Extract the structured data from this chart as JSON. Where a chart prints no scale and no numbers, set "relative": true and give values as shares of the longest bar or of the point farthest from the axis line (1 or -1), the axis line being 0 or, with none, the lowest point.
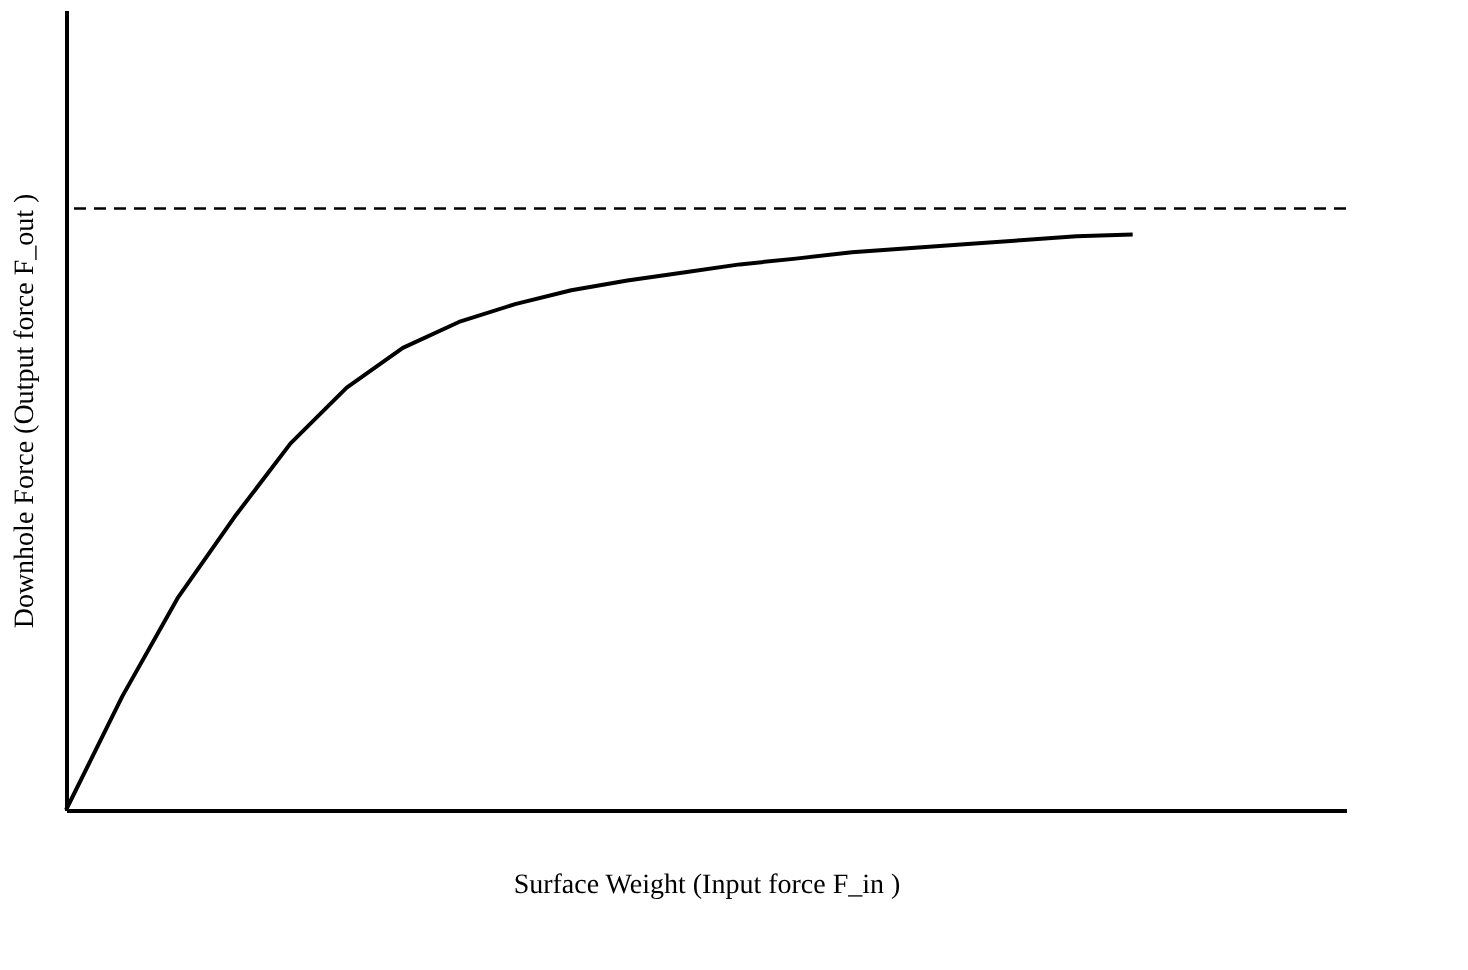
{
  "chart_data": {
    "type": "line",
    "relative": true,
    "xlabel": "Surface Weight  (Input force F_in )",
    "ylabel": "Downhole Force (Output force F_out )",
    "categories": [
      null,
      null,
      null,
      null,
      null,
      null,
      null,
      null,
      null,
      null,
      null,
      null,
      null,
      null,
      null,
      null,
      null,
      null,
      null,
      null
    ],
    "series": [
      {
        "color": "#000000",
        "values": [
          0,
          0.197,
          0.37,
          0.509,
          0.637,
          0.734,
          0.803,
          0.848,
          0.879,
          0.903,
          0.92,
          0.934,
          0.948,
          0.958,
          0.969,
          0.976,
          0.983,
          0.99,
          0.997,
          1.0
        ]
      }
    ],
    "ref_lines": [
      {
        "axis": "y",
        "value": 1.045,
        "color": "#000000",
        "line_style": "dashed"
      }
    ],
    "grid": false,
    "legend": false,
    "line_style": "solid",
    "marker": "none",
    "tick_labels": false
  }
}
